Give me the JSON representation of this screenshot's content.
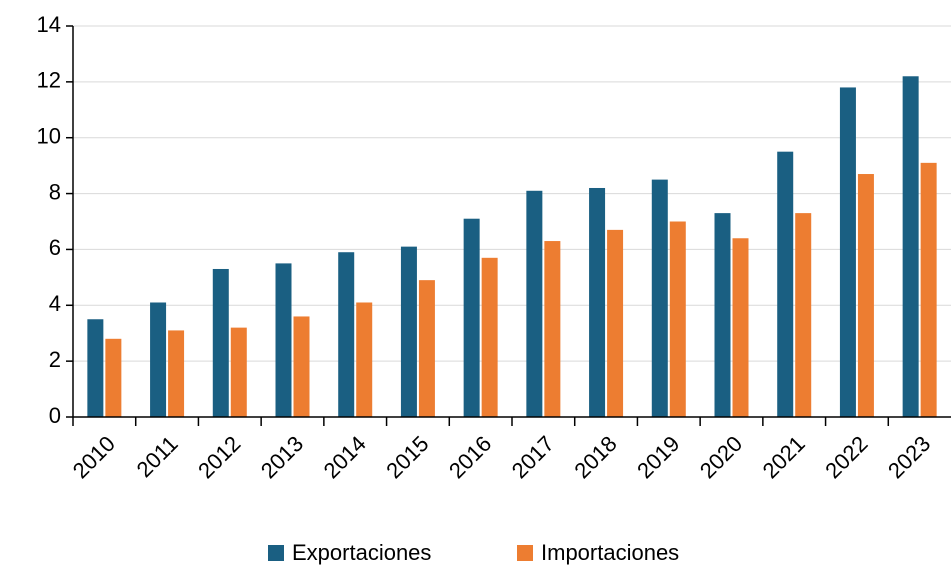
{
  "chart_data": {
    "type": "bar",
    "categories": [
      "2010",
      "2011",
      "2012",
      "2013",
      "2014",
      "2015",
      "2016",
      "2017",
      "2018",
      "2019",
      "2020",
      "2021",
      "2022",
      "2023"
    ],
    "series": [
      {
        "name": "Exportaciones",
        "color": "#1a5f82",
        "values": [
          3.5,
          4.1,
          5.3,
          5.5,
          5.9,
          6.1,
          7.1,
          8.1,
          8.2,
          8.5,
          7.3,
          9.5,
          11.8,
          12.2
        ]
      },
      {
        "name": "Importaciones",
        "color": "#ed7d31",
        "values": [
          2.8,
          3.1,
          3.2,
          3.6,
          4.1,
          4.9,
          5.7,
          6.3,
          6.7,
          7.0,
          6.4,
          7.3,
          8.7,
          9.1
        ]
      }
    ],
    "ylim": [
      0,
      14
    ],
    "yticks": [
      0,
      2,
      4,
      6,
      8,
      10,
      12,
      14
    ],
    "grid": true,
    "legend": "bottom"
  }
}
